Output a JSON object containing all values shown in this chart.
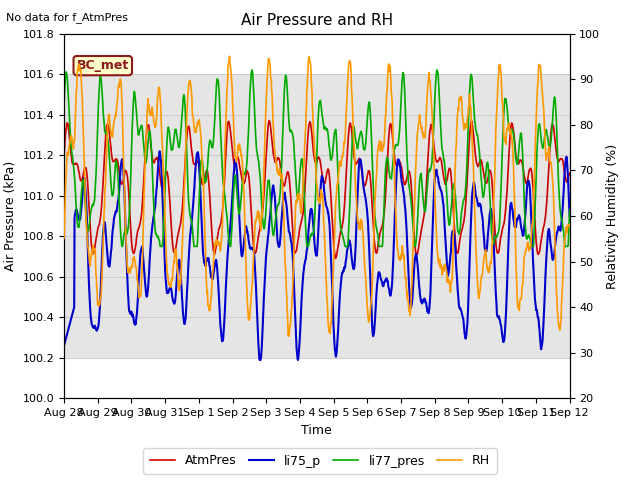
{
  "title": "Air Pressure and RH",
  "top_left_text": "No data for f_AtmPres",
  "station_label": "BC_met",
  "xlabel": "Time",
  "ylabel_left": "Air Pressure (kPa)",
  "ylabel_right": "Relativity Humidity (%)",
  "ylim_left": [
    100.0,
    101.8
  ],
  "ylim_right": [
    20,
    100
  ],
  "yticks_left": [
    100.0,
    100.2,
    100.4,
    100.6,
    100.8,
    101.0,
    101.2,
    101.4,
    101.6,
    101.8
  ],
  "yticks_right": [
    20,
    30,
    40,
    50,
    60,
    70,
    80,
    90,
    100
  ],
  "xtick_labels": [
    "Aug 28",
    "Aug 29",
    "Aug 30",
    "Aug 31",
    "Sep 1",
    "Sep 2",
    "Sep 3",
    "Sep 4",
    "Sep 5",
    "Sep 6",
    "Sep 7",
    "Sep 8",
    "Sep 9",
    "Sep 10",
    "Sep 11",
    "Sep 12"
  ],
  "n_xticks": 16,
  "colors": {
    "AtmPres": "#cc0000",
    "li75_p": "#0000cc",
    "li77_pres": "#00aa00",
    "RH": "#ff9900",
    "bg_band_color": "#d0d0d0"
  },
  "bg_band": [
    100.2,
    101.6
  ],
  "line_widths": {
    "AtmPres": 1.2,
    "li75_p": 1.5,
    "li77_pres": 1.2,
    "RH": 1.2
  },
  "n_days": 15,
  "n_points": 1440,
  "figsize": [
    6.4,
    4.8
  ],
  "dpi": 100
}
